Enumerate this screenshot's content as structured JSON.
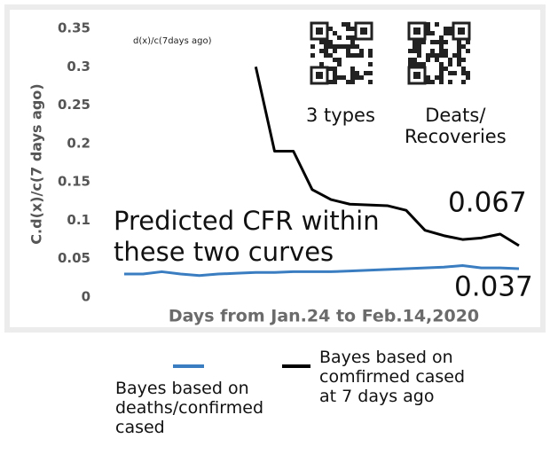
{
  "chart_data": {
    "type": "line",
    "subtitle": "d(x)/c(7days ago)",
    "ylabel": "C.d(x)/c(7 days ago)",
    "xlabel": "Days from Jan.24 to Feb.14,2020",
    "annotations": [
      "3 types",
      "Deats/\nRecoveries",
      "Predicted CFR within these two curves"
    ],
    "categories": [
      null,
      null,
      null,
      null,
      null,
      null,
      null,
      null,
      null,
      null,
      null,
      null,
      null,
      null,
      null,
      null,
      null,
      null,
      null,
      null,
      null,
      null
    ],
    "series": [
      {
        "name": "Bayes based on deaths/confirmed cased",
        "color": "#3a7dc0",
        "values": [
          0.03,
          0.03,
          0.033,
          0.03,
          0.028,
          0.03,
          0.031,
          0.032,
          0.032,
          0.033,
          0.033,
          0.033,
          0.034,
          0.035,
          0.036,
          0.037,
          0.038,
          0.039,
          0.041,
          0.038,
          0.038,
          0.037
        ]
      },
      {
        "name": "Bayes based on comfirmed cased at 7 days ago",
        "color": "#000000",
        "values": [
          null,
          null,
          null,
          null,
          null,
          null,
          null,
          0.3,
          0.19,
          0.19,
          0.14,
          0.127,
          0.121,
          0.12,
          0.119,
          0.113,
          0.087,
          0.08,
          0.075,
          0.077,
          0.082,
          0.067
        ]
      }
    ],
    "ylim": [
      0,
      0.35
    ],
    "yticks": [
      0,
      0.05,
      0.1,
      0.15,
      0.2,
      0.25,
      0.3,
      0.35
    ],
    "grid": false
  }
}
